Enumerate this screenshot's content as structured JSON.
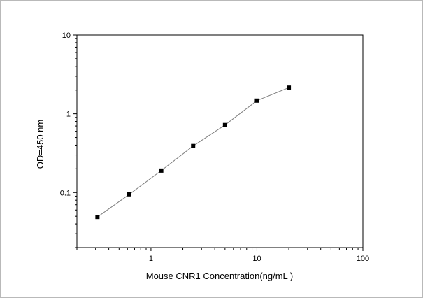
{
  "chart_data": {
    "type": "line",
    "title": "",
    "xlabel": "Mouse CNR1 Concentration(ng/mL )",
    "ylabel": "OD=450 nm",
    "xscale": "log",
    "yscale": "log",
    "xlim": [
      0.2,
      100
    ],
    "ylim": [
      0.02,
      10
    ],
    "x_ticks": [
      {
        "value": 1,
        "label": "1"
      },
      {
        "value": 10,
        "label": "10"
      },
      {
        "value": 100,
        "label": "100"
      }
    ],
    "y_ticks": [
      {
        "value": 0.1,
        "label": "0.1"
      },
      {
        "value": 1,
        "label": "1"
      },
      {
        "value": 10,
        "label": "10"
      }
    ],
    "grid": false,
    "legend": "none",
    "series": [
      {
        "x": [
          0.3125,
          0.625,
          1.25,
          2.5,
          5,
          10,
          20
        ],
        "y": [
          0.049,
          0.095,
          0.19,
          0.39,
          0.72,
          1.47,
          2.15
        ],
        "marker": "square",
        "color": "#000000",
        "line_color": "#7f7f7f"
      }
    ]
  }
}
